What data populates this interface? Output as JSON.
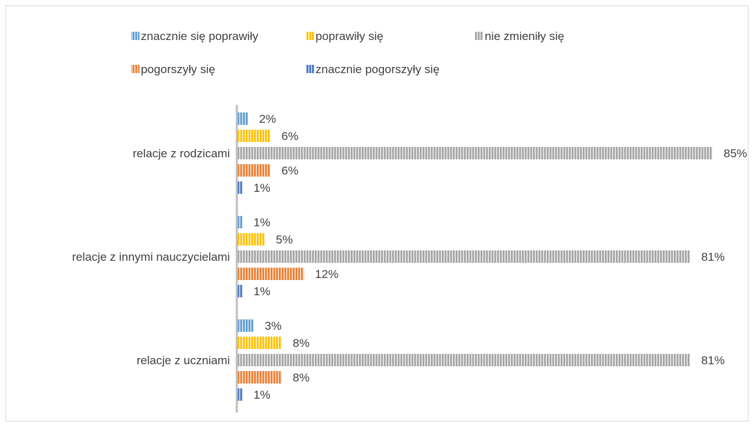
{
  "chart_data": {
    "type": "bar",
    "orientation": "horizontal",
    "categories": [
      "relacje z rodzicami",
      "relacje z innymi nauczycielami",
      "relacje z uczniami"
    ],
    "series": [
      {
        "name": "znacznie się poprawiły",
        "color": "#5b9bd5",
        "values": [
          2,
          1,
          3
        ],
        "labels": [
          "2%",
          "1%",
          "3%"
        ]
      },
      {
        "name": "poprawiły się",
        "color": "#ffc000",
        "values": [
          6,
          5,
          8
        ],
        "labels": [
          "6%",
          "5%",
          "8%"
        ]
      },
      {
        "name": "nie zmieniły się",
        "color": "#a5a5a5",
        "values": [
          85,
          81,
          81
        ],
        "labels": [
          "85%",
          "81%",
          "81%"
        ]
      },
      {
        "name": "pogorszyły się",
        "color": "#ed7d31",
        "values": [
          6,
          12,
          8
        ],
        "labels": [
          "6%",
          "12%",
          "8%"
        ]
      },
      {
        "name": "znacznie pogorszyły się",
        "color": "#4472c4",
        "values": [
          1,
          1,
          1
        ],
        "labels": [
          "1%",
          "1%",
          "1%"
        ]
      }
    ],
    "xlim": [
      0,
      85
    ],
    "legend_position": "top",
    "grid": false
  }
}
